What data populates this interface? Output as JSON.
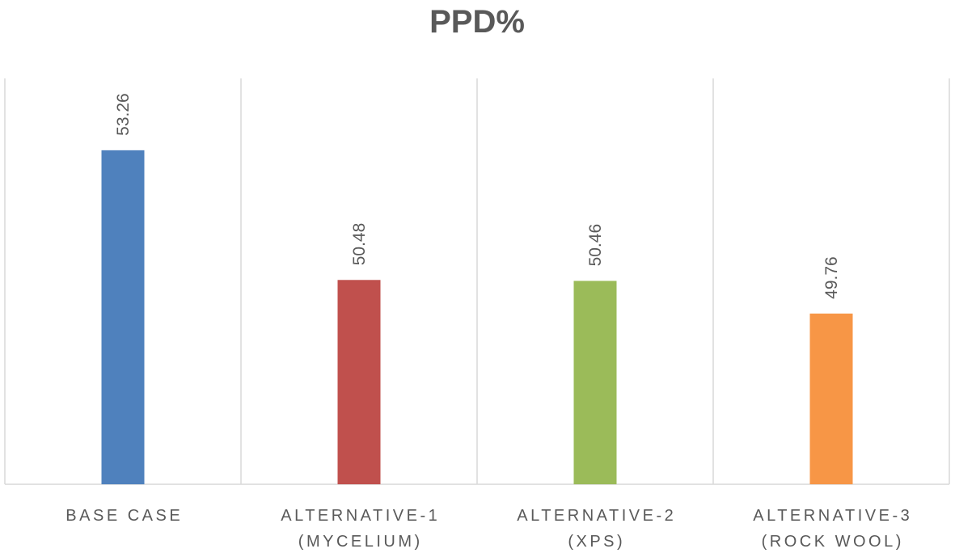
{
  "chart_data": {
    "type": "bar",
    "title": "PPD%",
    "xlabel": "",
    "ylabel": "",
    "categories": [
      [
        "BASE CASE"
      ],
      [
        "ALTERNATIVE-1",
        "(MYCELIUM)"
      ],
      [
        "ALTERNATIVE-2",
        "(XPS)"
      ],
      [
        "ALTERNATIVE-3",
        "(ROCK WOOL)"
      ]
    ],
    "values": [
      53.26,
      50.48,
      50.46,
      49.76
    ],
    "data_labels": [
      "53.26",
      "50.48",
      "50.46",
      "49.76"
    ],
    "colors": [
      "#4f81bd",
      "#c0504d",
      "#9bbb59",
      "#f79646"
    ],
    "ylim": [
      46.1,
      54.8
    ],
    "grid": "vertical category separators",
    "legend": "none"
  }
}
